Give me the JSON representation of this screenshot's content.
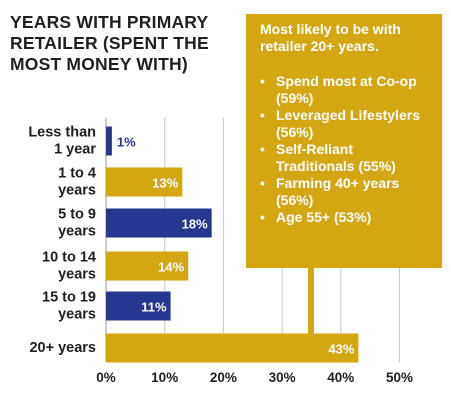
{
  "title": "YEARS WITH PRIMARY RETAILER (SPENT THE MOST MONEY WITH)",
  "callout": {
    "intro": "Most likely to be with retailer 20+ years.",
    "bullets": [
      "Spend most at Co-op (59%)",
      "Leveraged Lifestylers (56%)",
      "Self-Reliant Traditionals (55%)",
      "Farming 40+ years (56%)",
      "Age 55+ (53%)"
    ]
  },
  "colors": {
    "gold": "#d4a612",
    "navy": "#27378f",
    "grid": "#c8c8c8"
  },
  "chart_data": {
    "type": "bar",
    "orientation": "horizontal",
    "categories": [
      [
        "Less than",
        "1 year"
      ],
      [
        "1 to 4",
        "years"
      ],
      [
        "5 to 9",
        "years"
      ],
      [
        "10 to 14",
        "years"
      ],
      [
        "15 to 19",
        "years"
      ],
      [
        "20+ years"
      ]
    ],
    "values": [
      1,
      13,
      18,
      14,
      11,
      43
    ],
    "value_labels": [
      "1%",
      "13%",
      "18%",
      "14%",
      "11%",
      "43%"
    ],
    "bar_colors": [
      "navy",
      "gold",
      "navy",
      "gold",
      "navy",
      "gold"
    ],
    "xlim": [
      0,
      50
    ],
    "xticks": [
      0,
      10,
      20,
      30,
      40,
      50
    ],
    "xtick_labels": [
      "0%",
      "10%",
      "20%",
      "30%",
      "40%",
      "50%"
    ],
    "grid": true
  }
}
